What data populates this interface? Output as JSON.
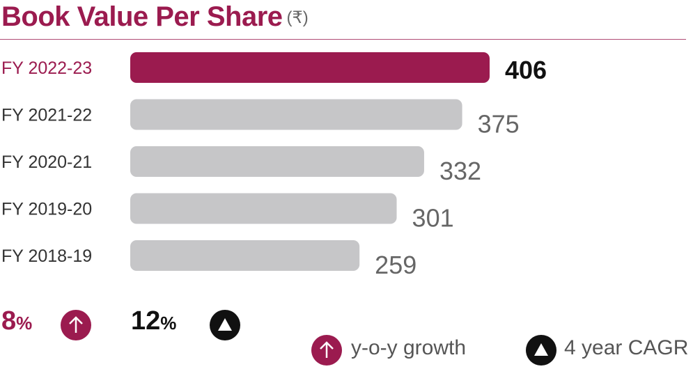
{
  "title": "Book Value Per Share",
  "unit": "(₹)",
  "colors": {
    "accent": "#9b1b4f",
    "bar_grey": "#c6c6c8",
    "dark": "#111111"
  },
  "summary": {
    "yoy_value": "8",
    "yoy_symbol": "%",
    "cagr_value": "12",
    "cagr_symbol": "%"
  },
  "legend": {
    "yoy_label": "y-o-y growth",
    "cagr_label": "4 year CAGR",
    "yoy_icon": "arrow-up-circle-icon",
    "cagr_icon": "triangle-circle-icon"
  },
  "chart_data": {
    "type": "bar",
    "orientation": "horizontal",
    "categories": [
      "FY 2022-23",
      "FY 2021-22",
      "FY 2020-21",
      "FY 2019-20",
      "FY 2018-19"
    ],
    "values": [
      406,
      375,
      332,
      301,
      259
    ],
    "value_labels": [
      "406",
      "375",
      "332",
      "301",
      "259"
    ],
    "highlight_index": 0,
    "grid": false
  }
}
